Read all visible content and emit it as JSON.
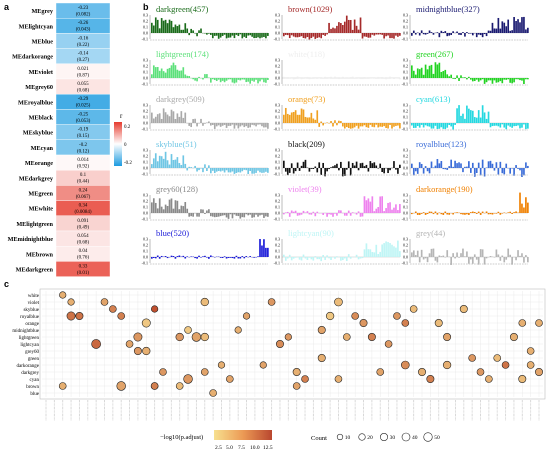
{
  "panels": {
    "a": "a",
    "b": "b",
    "c": "c"
  },
  "heatmap_legend_title": "r",
  "heatmap_legend_ticks": [
    "0.2",
    "0",
    "-0.2"
  ],
  "module_trait": [
    {
      "name": "MEgrey",
      "r": "-0.23",
      "p": "(0.082)",
      "v": -0.23
    },
    {
      "name": "MElightcyan",
      "r": "-0.26",
      "p": "(0.043)",
      "v": -0.26
    },
    {
      "name": "MEblue",
      "r": "-0.16",
      "p": "(0.22)",
      "v": -0.16
    },
    {
      "name": "MEdarkorange",
      "r": "-0.14",
      "p": "(0.27)",
      "v": -0.14
    },
    {
      "name": "MEviolet",
      "r": "0.021",
      "p": "(0.87)",
      "v": 0.021
    },
    {
      "name": "MEgrey60",
      "r": "0.055",
      "p": "(0.68)",
      "v": 0.055
    },
    {
      "name": "MEroyalblue",
      "r": "-0.29",
      "p": "(0.025)",
      "v": -0.29
    },
    {
      "name": "MEblack",
      "r": "-0.25",
      "p": "(0.053)",
      "v": -0.25
    },
    {
      "name": "MEskyblue",
      "r": "-0.19",
      "p": "(0.15)",
      "v": -0.19
    },
    {
      "name": "MEcyan",
      "r": "-0.2",
      "p": "(0.12)",
      "v": -0.2
    },
    {
      "name": "MEorange",
      "r": "0.014",
      "p": "(0.92)",
      "v": 0.014
    },
    {
      "name": "MEdarkgrey",
      "r": "0.1",
      "p": "(0.44)",
      "v": 0.1
    },
    {
      "name": "MEgreen",
      "r": "0.24",
      "p": "(0.067)",
      "v": 0.24
    },
    {
      "name": "MEwhite",
      "r": "0.34",
      "p": "(0.0084)",
      "v": 0.34
    },
    {
      "name": "MElightgreen",
      "r": "0.091",
      "p": "(0.49)",
      "v": 0.091
    },
    {
      "name": "MEmidnightblue",
      "r": "0.054",
      "p": "(0.68)",
      "v": 0.054
    },
    {
      "name": "MEbrown",
      "r": "0.04",
      "p": "(0.76)",
      "v": 0.04
    },
    {
      "name": "MEdarkgreen",
      "r": "0.33",
      "p": "(0.01)",
      "v": 0.33
    }
  ],
  "colors": {
    "heat_neg": "#1c9be0",
    "heat_pos": "#e63b2e",
    "bubble_low": "#f4d38a",
    "bubble_high": "#c0502f"
  },
  "eigengene_axis_ticks": [
    "0.3",
    "0.2",
    "0.1",
    "0.0",
    "-0.1"
  ],
  "eigengene_modules": [
    {
      "name": "darkgreen(457)",
      "color": "#1a6b1a",
      "seed": 1,
      "pattern": "front"
    },
    {
      "name": "brown(1029)",
      "color": "#a52a2a",
      "seed": 2,
      "pattern": "mid"
    },
    {
      "name": "midnightblue(327)",
      "color": "#191970",
      "seed": 3,
      "pattern": "late"
    },
    {
      "name": "lightgreen(174)",
      "color": "#5ce07a",
      "seed": 4,
      "pattern": "front"
    },
    {
      "name": "white(118)",
      "color": "#eeeeee",
      "seed": 5,
      "pattern": "flat"
    },
    {
      "name": "green(267)",
      "color": "#22d322",
      "seed": 6,
      "pattern": "front"
    },
    {
      "name": "darkgrey(509)",
      "color": "#a9a9a9",
      "seed": 7,
      "pattern": "front"
    },
    {
      "name": "orange(73)",
      "color": "#f0a020",
      "seed": 8,
      "pattern": "front"
    },
    {
      "name": "cyan(613)",
      "color": "#24d8e0",
      "seed": 9,
      "pattern": "mid"
    },
    {
      "name": "skyblue(51)",
      "color": "#6fc6e4",
      "seed": 10,
      "pattern": "front"
    },
    {
      "name": "black(209)",
      "color": "#111111",
      "seed": 11,
      "pattern": "mixed"
    },
    {
      "name": "royalblue(123)",
      "color": "#3a6cd8",
      "seed": 12,
      "pattern": "mixed"
    },
    {
      "name": "grey60(128)",
      "color": "#8a8a8a",
      "seed": 13,
      "pattern": "front"
    },
    {
      "name": "violet(39)",
      "color": "#ee82ee",
      "seed": 14,
      "pattern": "late"
    },
    {
      "name": "darkorange(190)",
      "color": "#f08000",
      "seed": 15,
      "pattern": "end"
    },
    {
      "name": "blue(520)",
      "color": "#1a1ad8",
      "seed": 16,
      "pattern": "end"
    },
    {
      "name": "lightcyan(90)",
      "color": "#bff5f5",
      "seed": 17,
      "pattern": "late"
    },
    {
      "name": "grey(44)",
      "color": "#b5b5b5",
      "seed": 18,
      "pattern": "mixed"
    }
  ],
  "chart_data": {
    "type": "scatter",
    "y_categories": [
      "white",
      "violet",
      "skyblue",
      "royalblue",
      "orange",
      "midnightblue",
      "lightgreen",
      "lightcyan",
      "grey60",
      "green",
      "darkorange",
      "darkgrey",
      "cyan",
      "brown",
      "blue"
    ],
    "x_count": 60,
    "points": [
      [
        3,
        3,
        17,
        45
      ],
      [
        3,
        4,
        17,
        30
      ],
      [
        7,
        6,
        18,
        60
      ],
      [
        4,
        12,
        10,
        45
      ],
      [
        6,
        19,
        11,
        35
      ],
      [
        6,
        11,
        14,
        45
      ],
      [
        1,
        7,
        13,
        25
      ],
      [
        2,
        8,
        16,
        25
      ],
      [
        3,
        9,
        16,
        25
      ],
      [
        7,
        10,
        13,
        25
      ],
      [
        8,
        11,
        14,
        30
      ],
      [
        13,
        13,
        12,
        25
      ],
      [
        13,
        9,
        13,
        55
      ],
      [
        8,
        12,
        12,
        35
      ],
      [
        2,
        13,
        20,
        20
      ],
      [
        13,
        13,
        16,
        25
      ],
      [
        11,
        14,
        14,
        25
      ],
      [
        13,
        16,
        11,
        25
      ],
      [
        12,
        17,
        14,
        55
      ],
      [
        5,
        17,
        10,
        25
      ],
      [
        6,
        18,
        13,
        55
      ],
      [
        1,
        19,
        11,
        35
      ],
      [
        11,
        19,
        13,
        25
      ],
      [
        14,
        20,
        12,
        25
      ],
      [
        12,
        22,
        13,
        25
      ],
      [
        5,
        23,
        12,
        20
      ],
      [
        3,
        24,
        13,
        20
      ],
      [
        10,
        26,
        13,
        20
      ],
      [
        1,
        27,
        14,
        25
      ],
      [
        7,
        28,
        15,
        30
      ],
      [
        6,
        29,
        14,
        20
      ],
      [
        13,
        30,
        13,
        25
      ],
      [
        11,
        30,
        12,
        30
      ],
      [
        12,
        31,
        16,
        25
      ],
      [
        5,
        33,
        13,
        30
      ],
      [
        9,
        33,
        12,
        30
      ],
      [
        3,
        34,
        10,
        35
      ],
      [
        1,
        35,
        11,
        40
      ],
      [
        12,
        35,
        12,
        25
      ],
      [
        6,
        36,
        12,
        25
      ],
      [
        3,
        37,
        15,
        25
      ],
      [
        4,
        38,
        14,
        30
      ],
      [
        6,
        39,
        16,
        30
      ],
      [
        11,
        40,
        13,
        25
      ],
      [
        3,
        42,
        14,
        25
      ],
      [
        4,
        43,
        16,
        25
      ],
      [
        10,
        43,
        15,
        40
      ],
      [
        2,
        44,
        11,
        25
      ],
      [
        11,
        45,
        12,
        30
      ],
      [
        12,
        46,
        16,
        30
      ],
      [
        4,
        47,
        11,
        30
      ],
      [
        6,
        48,
        13,
        30
      ],
      [
        10,
        48,
        12,
        35
      ],
      [
        2,
        50,
        11,
        30
      ],
      [
        9,
        51,
        14,
        25
      ],
      [
        11,
        52,
        14,
        25
      ],
      [
        12,
        53,
        12,
        25
      ],
      [
        10,
        55,
        17,
        25
      ],
      [
        6,
        56,
        12,
        30
      ],
      [
        4,
        57,
        12,
        25
      ],
      [
        12,
        57,
        11,
        30
      ],
      [
        8,
        58,
        12,
        25
      ],
      [
        10,
        58,
        12,
        25
      ],
      [
        11,
        59,
        13,
        30
      ],
      [
        4,
        59,
        12,
        25
      ],
      [
        13,
        2,
        12,
        25
      ],
      [
        6,
        16,
        14,
        35
      ],
      [
        10,
        21,
        12,
        20
      ],
      [
        7,
        41,
        14,
        25
      ],
      [
        9,
        54,
        11,
        25
      ],
      [
        0,
        2,
        12,
        20
      ],
      [
        1,
        3,
        12,
        20
      ]
    ],
    "color_legend": {
      "title": "−log10(p.adjust)",
      "ticks": [
        "2.5",
        "5.0",
        "7.5",
        "10.0",
        "12.5"
      ]
    },
    "size_legend": {
      "title": "Count",
      "ticks": [
        "10",
        "20",
        "30",
        "40",
        "50"
      ]
    }
  }
}
